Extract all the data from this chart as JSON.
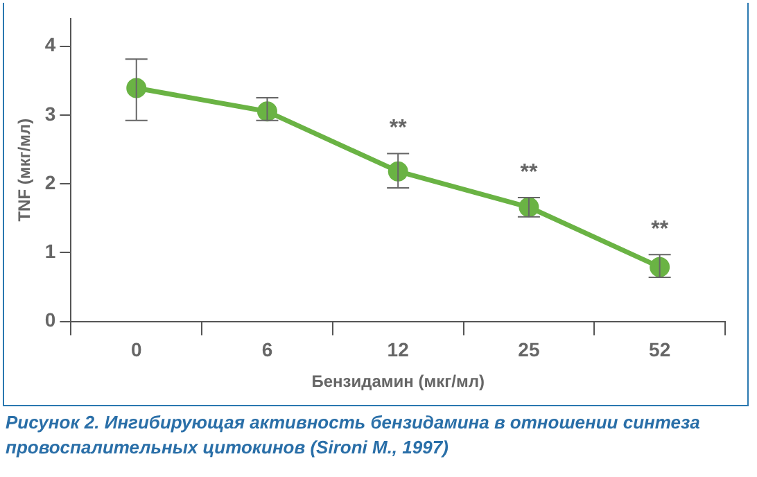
{
  "chart_data": {
    "type": "line",
    "xlabel": "Бензидамин (мкг/мл)",
    "ylabel": "TNF (мкг/мл)",
    "categories": [
      "0",
      "6",
      "12",
      "25",
      "52"
    ],
    "series": [
      {
        "color": "#6ab344",
        "values": [
          3.39,
          3.05,
          2.18,
          1.66,
          0.79
        ],
        "errors": [
          [
            2.92,
            3.81
          ],
          [
            2.92,
            3.25
          ],
          [
            1.94,
            2.44
          ],
          [
            1.52,
            1.8
          ],
          [
            0.64,
            0.97
          ]
        ]
      }
    ],
    "ylim": [
      0,
      4.4
    ],
    "yticks": [
      0,
      1,
      2,
      3,
      4
    ],
    "grid": false,
    "legend": false,
    "marker": "circle",
    "line_style": "solid",
    "annotations": [
      {
        "text": "**",
        "x": "12",
        "y": 2.18
      },
      {
        "text": "**",
        "x": "25",
        "y": 1.66
      },
      {
        "text": "**",
        "x": "52",
        "y": 0.79
      },
      "Рисунок 2.  Ингибирующая активность бензидамина в отношении синтеза провоспалительных цитокинов (Sironi M., 1997)"
    ]
  }
}
